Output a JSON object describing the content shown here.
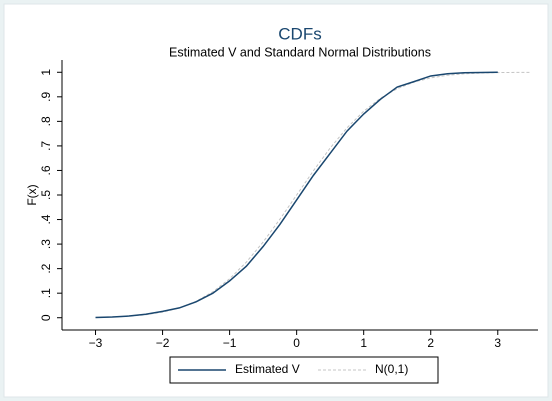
{
  "chart_data": {
    "type": "line",
    "title": "CDFs",
    "subtitle": "Estimated V and Standard Normal Distributions",
    "y_label": "F(x)",
    "x": [
      -3,
      -2.75,
      -2.5,
      -2.25,
      -2,
      -1.75,
      -1.5,
      -1.25,
      -1,
      -0.75,
      -0.5,
      -0.25,
      0,
      0.25,
      0.5,
      0.75,
      1,
      1.25,
      1.5,
      1.75,
      2,
      2.25,
      2.5,
      2.75,
      3,
      3.25,
      3.5
    ],
    "series": [
      {
        "name": "Estimated V",
        "color": "#1a476f",
        "dashed": false,
        "values": [
          0.001,
          0.003,
          0.007,
          0.014,
          0.026,
          0.04,
          0.065,
          0.1,
          0.15,
          0.21,
          0.29,
          0.38,
          0.48,
          0.58,
          0.67,
          0.76,
          0.83,
          0.89,
          0.94,
          0.962,
          0.985,
          0.994,
          0.998,
          0.999,
          1.0,
          null,
          null
        ]
      },
      {
        "name": "N(0,1)",
        "color": "#c4c4c4",
        "dashed": true,
        "values": [
          0.0013,
          0.003,
          0.0062,
          0.0122,
          0.0228,
          0.0401,
          0.0668,
          0.1056,
          0.1587,
          0.2266,
          0.3085,
          0.4013,
          0.5,
          0.5987,
          0.6915,
          0.7734,
          0.8413,
          0.8944,
          0.9332,
          0.9599,
          0.9772,
          0.9878,
          0.9938,
          0.997,
          0.9987,
          0.9994,
          0.9998
        ]
      }
    ],
    "xlim": [
      -3.5,
      3.6
    ],
    "ylim": [
      -0.05,
      1.05
    ],
    "xticks": [
      {
        "value": -3,
        "label": "−3"
      },
      {
        "value": -2,
        "label": "−2"
      },
      {
        "value": -1,
        "label": "−1"
      },
      0,
      1,
      2,
      3
    ],
    "yticks": [
      0,
      {
        "value": 0.1,
        "label": ".1"
      },
      {
        "value": 0.2,
        "label": ".2"
      },
      {
        "value": 0.3,
        "label": ".3"
      },
      {
        "value": 0.4,
        "label": ".4"
      },
      {
        "value": 0.5,
        "label": ".5"
      },
      {
        "value": 0.6,
        "label": ".6"
      },
      {
        "value": 0.7,
        "label": ".7"
      },
      {
        "value": 0.8,
        "label": ".8"
      },
      {
        "value": 0.9,
        "label": ".9"
      },
      1
    ],
    "grid": false,
    "legend": "bottom"
  }
}
